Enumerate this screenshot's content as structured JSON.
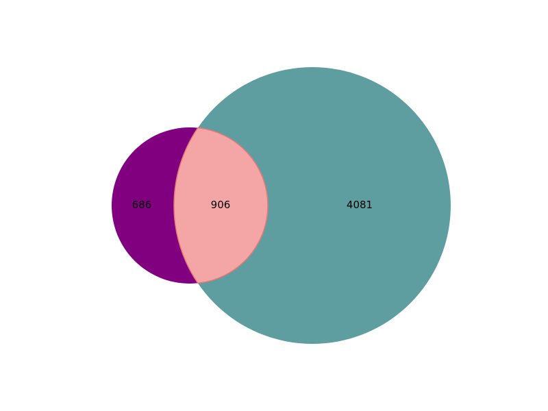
{
  "chart_data": {
    "type": "venn",
    "title": "",
    "sets": [
      {
        "name": "",
        "only": 686,
        "color": "#800080"
      },
      {
        "name": "",
        "only": 4081,
        "color": "#5f9ea0"
      }
    ],
    "intersection": {
      "value": 906,
      "color": "#f4a6a6",
      "edge_color": "#e87878"
    },
    "region_labels": {
      "left_only": "686",
      "both": "906",
      "right_only": "4081"
    }
  }
}
